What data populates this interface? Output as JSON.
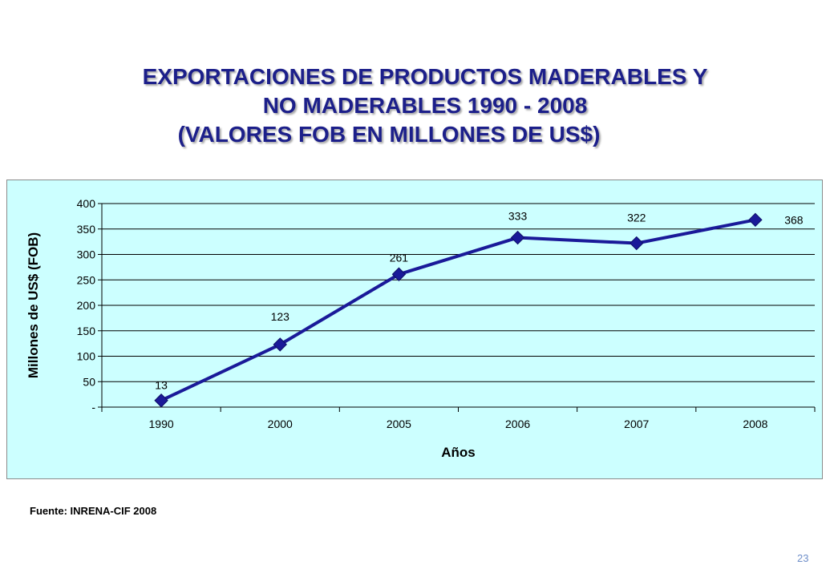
{
  "title": {
    "line1": "EXPORTACIONES DE PRODUCTOS MADERABLES Y",
    "line2": "NO MADERABLES 1990 - 2008",
    "line3": "(VALORES FOB EN MILLONES DE US$)"
  },
  "source": "Fuente: INRENA-CIF 2008",
  "page_number": "23",
  "colors": {
    "title": "#1c1f8a",
    "series": "#1a1a99",
    "plot_background": "#ccffff",
    "page_number": "#6f8fc9"
  },
  "chart_data": {
    "type": "line",
    "categories": [
      "1990",
      "2000",
      "2005",
      "2006",
      "2007",
      "2008"
    ],
    "series": [
      {
        "values": [
          13,
          123,
          261,
          333,
          322,
          368
        ]
      }
    ],
    "data_labels": [
      "13",
      "123",
      "261",
      "333",
      "322",
      "368"
    ],
    "xlabel": "Años",
    "ylabel": "Millones de US$ (FOB)",
    "ylim": [
      0,
      400
    ],
    "yticks": [
      0,
      50,
      100,
      150,
      200,
      250,
      300,
      350,
      400
    ],
    "ytick_labels": [
      "-",
      "50",
      "100",
      "150",
      "200",
      "250",
      "300",
      "350",
      "400"
    ],
    "grid": true,
    "marker": "diamond"
  }
}
